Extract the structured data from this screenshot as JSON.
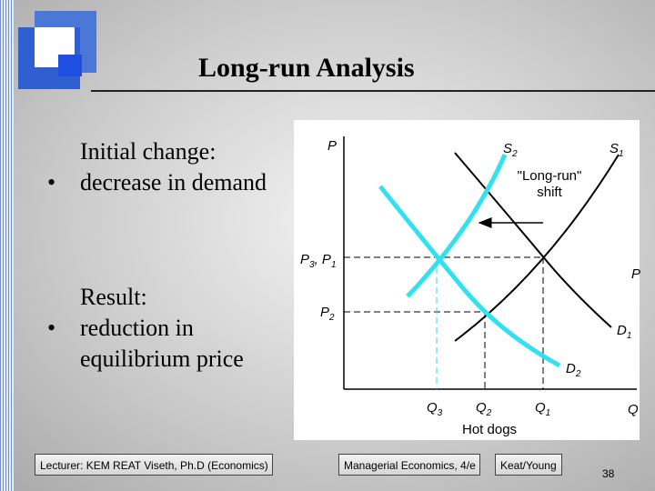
{
  "slide": {
    "title": "Long-run Analysis",
    "bullets": [
      {
        "lead": "Initial change:",
        "text": "decrease in demand"
      },
      {
        "lead": "Result:",
        "text": "reduction in equilibrium price"
      }
    ]
  },
  "diagram": {
    "y_axis": "P",
    "x_axis_end": "Q",
    "x_axis_title": "Hot dogs",
    "annotation": [
      "\"Long-run\"",
      "shift"
    ],
    "curves": {
      "s2": {
        "base": "S",
        "sub": "2"
      },
      "s1": {
        "base": "S",
        "sub": "1"
      },
      "d1": {
        "base": "D",
        "sub": "1"
      },
      "d2": {
        "base": "D",
        "sub": "2"
      }
    },
    "price_labels": {
      "p3p1": [
        {
          "base": "P",
          "sub": "3"
        },
        {
          "base": "P",
          "sub": "1"
        }
      ],
      "separator": ",",
      "p2": {
        "base": "P",
        "sub": "2"
      },
      "edge": "P"
    },
    "quantity_labels": {
      "q3": {
        "base": "Q",
        "sub": "3"
      },
      "q2": {
        "base": "Q",
        "sub": "2"
      },
      "q1": {
        "base": "Q",
        "sub": "1"
      }
    }
  },
  "footer": {
    "lecturer": "Lecturer: KEM REAT Viseth, Ph.D (Economics)",
    "course": "Managerial Economics, 4/e",
    "authors": "Keat/Young",
    "page": "38"
  }
}
